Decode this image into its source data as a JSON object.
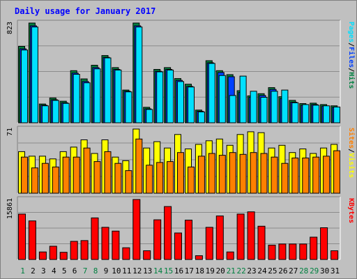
{
  "chart_data": {
    "type": "bar",
    "title": "Daily usage for January 2017",
    "categories": [
      "1",
      "2",
      "3",
      "4",
      "5",
      "6",
      "7",
      "8",
      "9",
      "10",
      "11",
      "12",
      "13",
      "14",
      "15",
      "16",
      "17",
      "18",
      "19",
      "20",
      "21",
      "22",
      "23",
      "24",
      "25",
      "26",
      "27",
      "28",
      "29",
      "30",
      "31"
    ],
    "weekend_days": [
      "1",
      "7",
      "8",
      "14",
      "15",
      "21",
      "22",
      "28",
      "29"
    ],
    "panels": [
      {
        "id": "pages-files-hits",
        "max_label": "823",
        "ylim": [
          0,
          823
        ],
        "grid": true,
        "side_labels": [
          "Pages",
          "Files",
          "Hits"
        ],
        "series": [
          {
            "name": "Hits",
            "color": "#008040",
            "values": [
              630,
              823,
              155,
              205,
              178,
              430,
              362,
              475,
              555,
              455,
              270,
              823,
              128,
              440,
              455,
              365,
              318,
              105,
              512,
              430,
              397,
              265,
              222,
              240,
              290,
              215,
              185,
              158,
              162,
              150,
              140
            ]
          },
          {
            "name": "Files",
            "color": "#0040ff",
            "values": [
              610,
              800,
              145,
              190,
              165,
              410,
              340,
              455,
              540,
              440,
              260,
              800,
              115,
              425,
              440,
              350,
              300,
              95,
              495,
              415,
              380,
              250,
              210,
              225,
              275,
              200,
              170,
              145,
              150,
              138,
              128
            ]
          },
          {
            "name": "Pages",
            "color": "#00e0ff",
            "values": [
              600,
              790,
              140,
              185,
              160,
              400,
              330,
              445,
              535,
              435,
              255,
              790,
              110,
              420,
              435,
              340,
              295,
              90,
              490,
              390,
              225,
              385,
              260,
              210,
              260,
              270,
              165,
              150,
              145,
              140,
              130
            ]
          }
        ]
      },
      {
        "id": "visits-sites",
        "max_label": "71",
        "ylim": [
          0,
          71
        ],
        "grid": true,
        "side_labels": [
          "Sites",
          "Visits"
        ],
        "series": [
          {
            "name": "Visits",
            "color": "#ffff00",
            "values": [
              46,
              41,
              41,
              38,
              46,
              51,
              59,
              44,
              59,
              40,
              36,
              71,
              50,
              57,
              50,
              65,
              49,
              54,
              58,
              60,
              53,
              65,
              68,
              67,
              50,
              53,
              45,
              49,
              44,
              50,
              54
            ]
          },
          {
            "name": "Sites",
            "color": "#ff8000",
            "values": [
              40,
              28,
              33,
              29,
              40,
              40,
              50,
              35,
              46,
              33,
              25,
              60,
              31,
              34,
              35,
              45,
              29,
              41,
              44,
              42,
              45,
              43,
              45,
              44,
              40,
              33,
              39,
              39,
              40,
              41,
              47
            ]
          }
        ]
      },
      {
        "id": "kbytes",
        "max_label": "15861",
        "ylim": [
          0,
          15861
        ],
        "grid": true,
        "side_labels": [
          "KBytes"
        ],
        "series": [
          {
            "name": "KBytes",
            "color": "#ff0000",
            "values": [
              12000,
              10200,
              2000,
              3500,
              1900,
              4800,
              5000,
              11000,
              8500,
              7500,
              3100,
              15861,
              2300,
              10500,
              14000,
              7000,
              10400,
              1000,
              8500,
              11500,
              2000,
              12000,
              12600,
              8800,
              3800,
              4100,
              4100,
              4100,
              5900,
              8400,
              2300
            ]
          }
        ]
      }
    ]
  }
}
